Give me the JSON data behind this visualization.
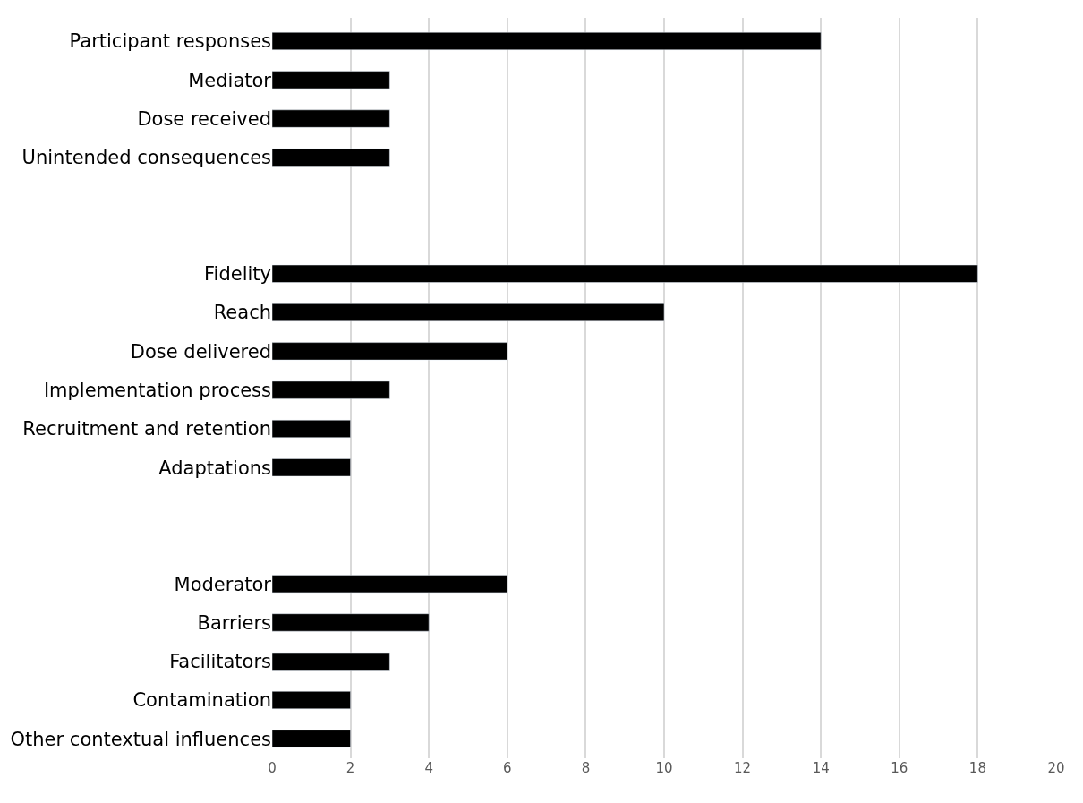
{
  "chart_data": {
    "type": "bar",
    "orientation": "horizontal",
    "categories": [
      "Participant responses",
      "Mediator",
      "Dose received",
      "Unintended consequences",
      null,
      null,
      "Fidelity",
      "Reach",
      "Dose delivered",
      "Implementation process",
      "Recruitment and retention",
      "Adaptations",
      null,
      null,
      "Moderator",
      "Barriers",
      "Facilitators",
      "Contamination",
      "Other contextual influences"
    ],
    "values": [
      14,
      3,
      3,
      3,
      null,
      null,
      18,
      10,
      6,
      3,
      2,
      2,
      null,
      null,
      6,
      4,
      3,
      2,
      2
    ],
    "color": "#000000",
    "xlim": [
      0,
      20
    ],
    "xticks": [
      0,
      2,
      4,
      6,
      8,
      10,
      12,
      14,
      16,
      18,
      20
    ],
    "grid": "x",
    "legend": false
  }
}
